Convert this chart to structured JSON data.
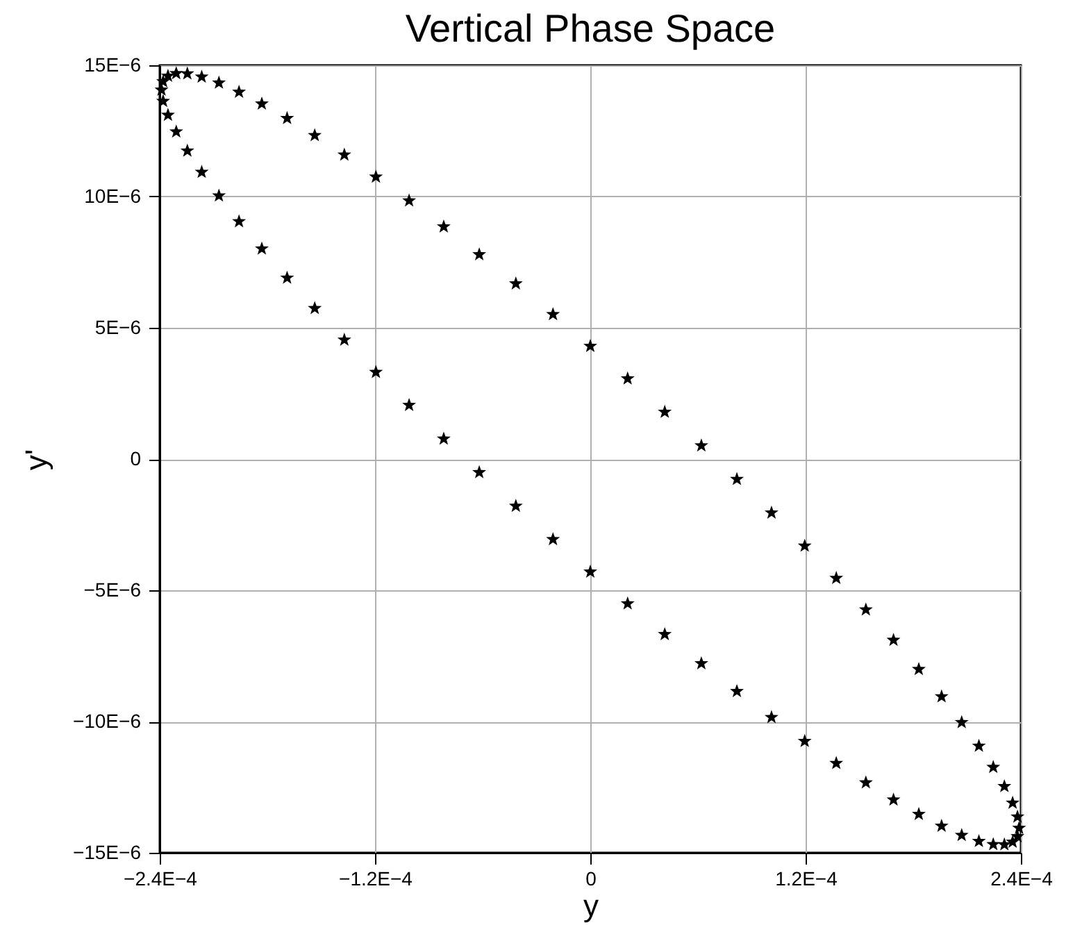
{
  "chart_data": {
    "type": "scatter",
    "title": "Vertical Phase Space",
    "xlabel": "y",
    "ylabel": "y'",
    "color": "#000000",
    "marker": "star",
    "grid": true,
    "xlim": [
      -0.00024,
      0.00024
    ],
    "xticks": [
      {
        "value": -0.00024,
        "label": "−2.4E−4"
      },
      {
        "value": -0.00012,
        "label": "−1.2E−4"
      },
      0,
      {
        "value": 0.00012,
        "label": "1.2E−4"
      },
      {
        "value": 0.00024,
        "label": "2.4E−4"
      }
    ],
    "ylim": [
      -1.5e-05,
      1.5e-05
    ],
    "yticks": [
      {
        "value": -1.5e-05,
        "label": "−15E−6"
      },
      {
        "value": -1e-05,
        "label": "−10E−6"
      },
      {
        "value": -5e-06,
        "label": "−5E−6"
      },
      0,
      {
        "value": 5e-06,
        "label": "5E−6"
      },
      {
        "value": 1e-05,
        "label": "10E−6"
      },
      {
        "value": 1.5e-05,
        "label": "15E−6"
      }
    ],
    "x": [
      0.000239,
      0.0002381,
      0.0002354,
      0.0002308,
      0.0002246,
      0.0002166,
      0.000207,
      0.0001958,
      0.0001831,
      0.000169,
      0.0001536,
      0.0001371,
      0.0001195,
      0.000101,
      8.17e-05,
      6.19e-05,
      4.15e-05,
      2.08e-05,
      0,
      -2.08e-05,
      -4.15e-05,
      -6.19e-05,
      -8.17e-05,
      -0.000101,
      -0.0001195,
      -0.0001371,
      -0.0001536,
      -0.000169,
      -0.0001831,
      -0.0001958,
      -0.000207,
      -0.0002166,
      -0.0002246,
      -0.0002308,
      -0.0002354,
      -0.0002381,
      -0.000239,
      -0.0002381,
      -0.0002354,
      -0.0002308,
      -0.0002246,
      -0.0002166,
      -0.000207,
      -0.0001958,
      -0.0001831,
      -0.000169,
      -0.0001536,
      -0.0001371,
      -0.0001195,
      -0.000101,
      -8.17e-05,
      -6.19e-05,
      -4.15e-05,
      -2.08e-05,
      0,
      2.08e-05,
      4.15e-05,
      6.19e-05,
      8.17e-05,
      0.000101,
      0.0001195,
      0.0001371,
      0.0001536,
      0.000169,
      0.0001831,
      0.0001958,
      0.000207,
      0.0002166,
      0.0002246,
      0.0002308,
      0.0002354,
      0.0002381
    ],
    "values": [
      -1.406e-05,
      -1.438e-05,
      -1.459e-05,
      -1.469e-05,
      -1.468e-05,
      -1.456e-05,
      -1.433e-05,
      -1.398e-05,
      -1.353e-05,
      -1.298e-05,
      -1.233e-05,
      -1.159e-05,
      -1.075e-05,
      -9.84e-06,
      -8.85e-06,
      -7.79e-06,
      -6.68e-06,
      -5.51e-06,
      -4.3e-06,
      -3.06e-06,
      -1.79e-06,
      -5.1e-07,
      7.7e-07,
      2.05e-06,
      3.31e-06,
      4.54e-06,
      5.74e-06,
      6.9e-06,
      8.01e-06,
      9.05e-06,
      1.003e-05,
      1.093e-05,
      1.174e-05,
      1.247e-05,
      1.31e-05,
      1.363e-05,
      1.406e-05,
      1.438e-05,
      1.459e-05,
      1.469e-05,
      1.468e-05,
      1.456e-05,
      1.433e-05,
      1.398e-05,
      1.353e-05,
      1.298e-05,
      1.233e-05,
      1.159e-05,
      1.075e-05,
      9.84e-06,
      8.85e-06,
      7.79e-06,
      6.68e-06,
      5.51e-06,
      4.3e-06,
      3.06e-06,
      1.79e-06,
      5.1e-07,
      -7.7e-07,
      -2.05e-06,
      -3.31e-06,
      -4.54e-06,
      -5.74e-06,
      -6.9e-06,
      -8.01e-06,
      -9.05e-06,
      -1.003e-05,
      -1.093e-05,
      -1.174e-05,
      -1.247e-05,
      -1.31e-05,
      -1.363e-05
    ]
  }
}
